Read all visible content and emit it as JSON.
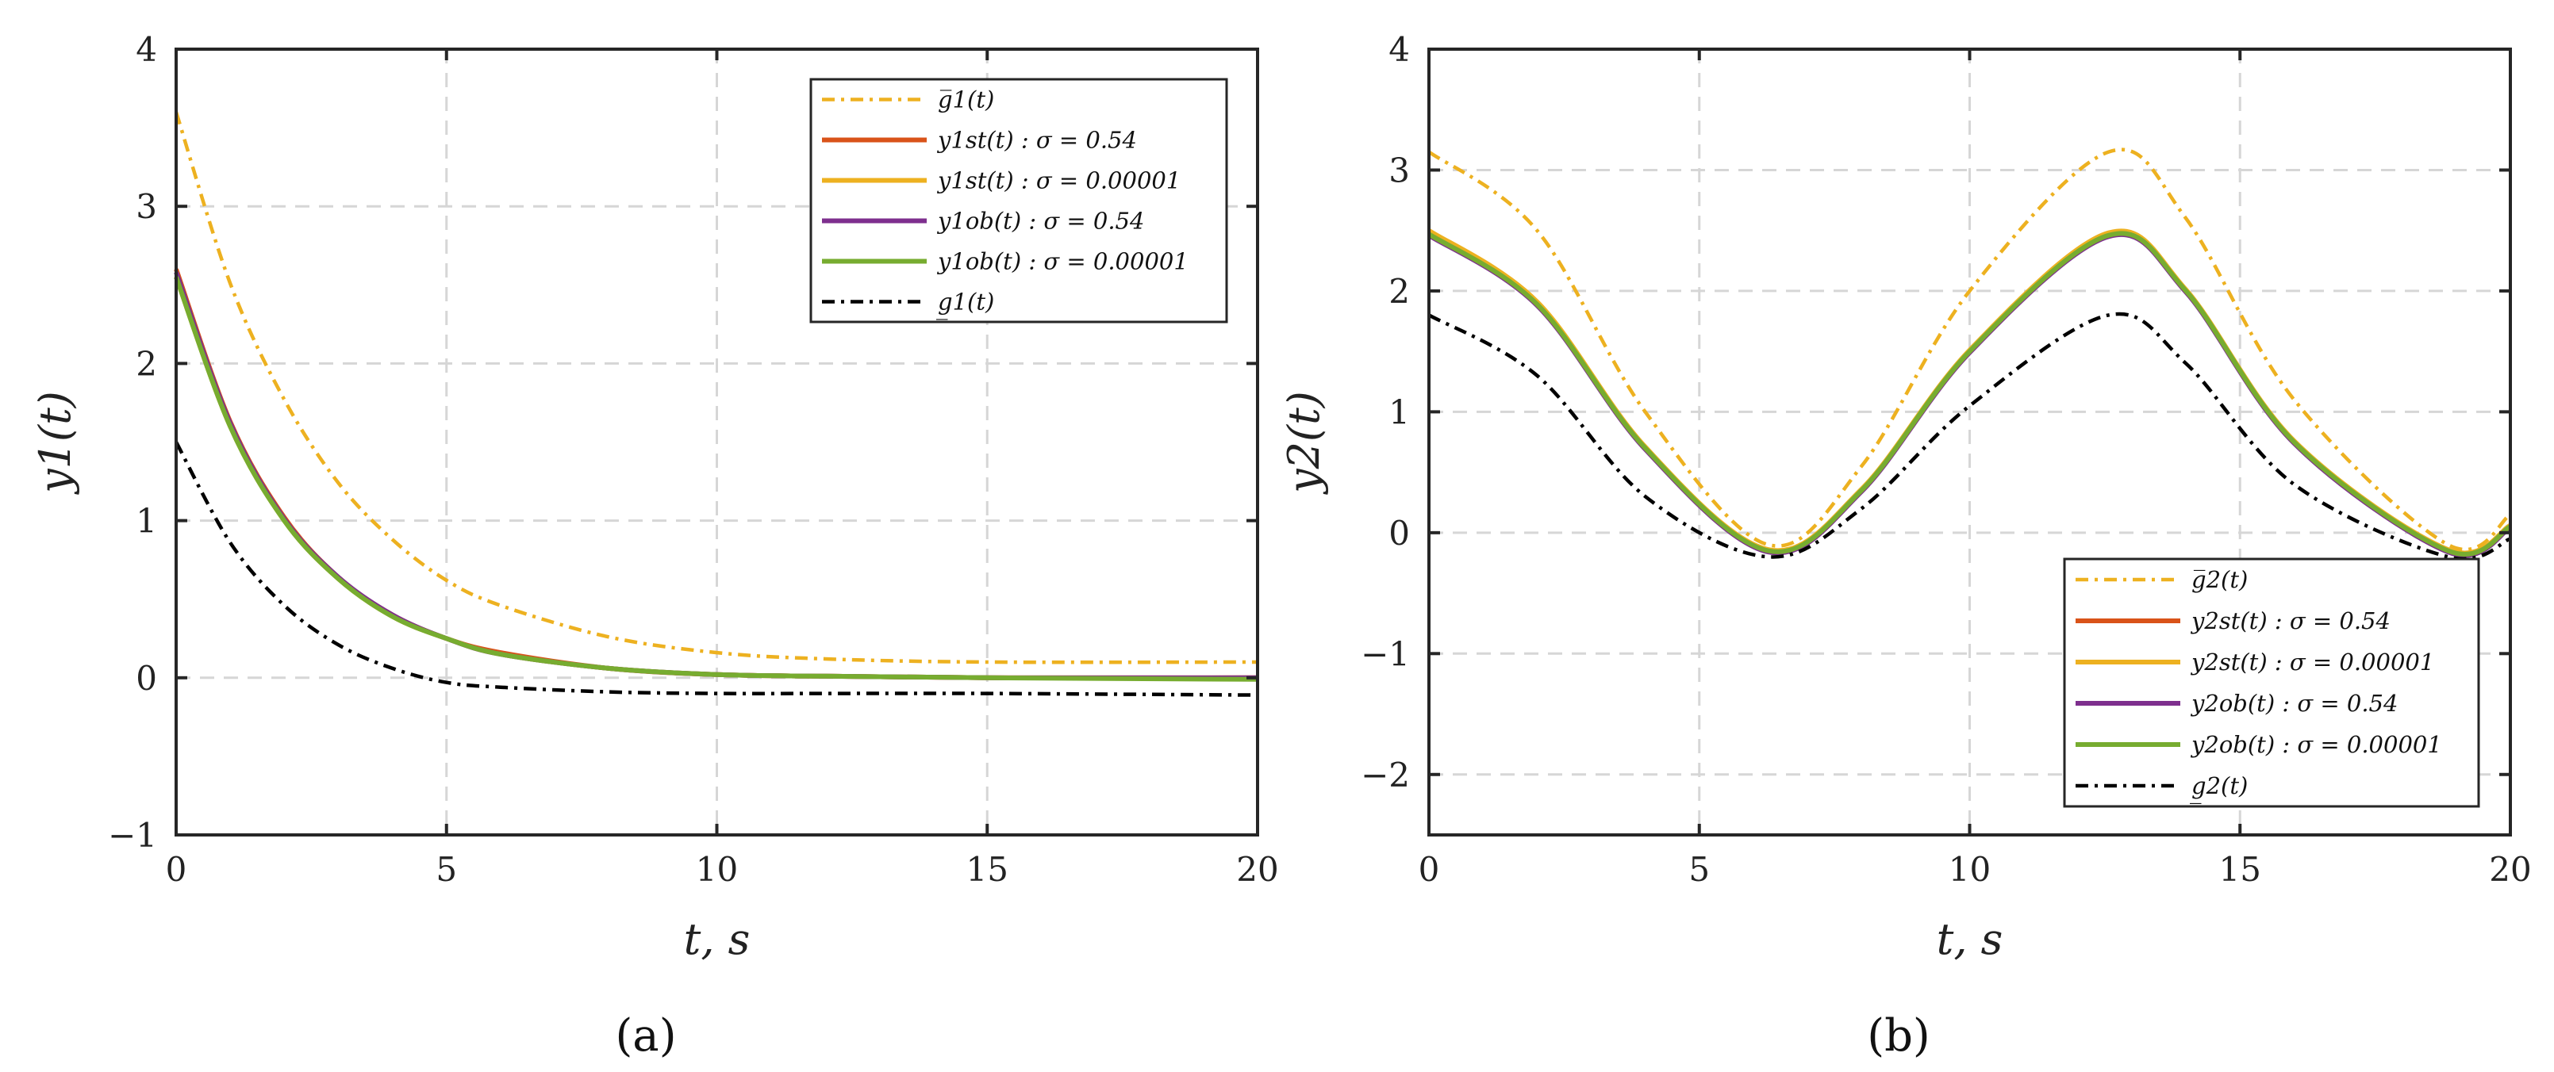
{
  "chart_data": [
    {
      "type": "line",
      "panel_label": "(a)",
      "xlabel": "t, s",
      "ylabel": "y1(t)",
      "xlim": [
        0,
        20
      ],
      "ylim": [
        -1,
        4
      ],
      "xticks": [
        0,
        5,
        10,
        15,
        20
      ],
      "yticks": [
        -1,
        0,
        1,
        2,
        3,
        4
      ],
      "xtick_labels": [
        "0",
        "5",
        "10",
        "15",
        "20"
      ],
      "ytick_labels": [
        "−1",
        "0",
        "1",
        "2",
        "3",
        "4"
      ],
      "grid": true,
      "legend_position": "top-right",
      "series": [
        {
          "name": "g̅1(t)",
          "color": "#EDB120",
          "dash": "dashdot",
          "x": [
            0,
            1,
            2,
            3,
            4,
            5,
            6,
            8,
            10,
            12,
            15,
            20
          ],
          "y": [
            3.6,
            2.51,
            1.77,
            1.24,
            0.88,
            0.62,
            0.46,
            0.26,
            0.16,
            0.12,
            0.1,
            0.1
          ]
        },
        {
          "name": "y1st(t) : σ = 0.54",
          "color": "#D95319",
          "dash": "solid",
          "x": [
            0,
            1,
            2,
            3,
            4,
            5,
            6,
            8,
            10,
            12,
            15,
            20
          ],
          "y": [
            2.6,
            1.63,
            1.02,
            0.64,
            0.4,
            0.25,
            0.16,
            0.06,
            0.02,
            0.01,
            0.0,
            0.0
          ]
        },
        {
          "name": "y1st(t) : σ = 0.00001",
          "color": "#EDB120",
          "dash": "solid",
          "x": [
            0,
            1,
            2,
            3,
            4,
            5,
            6,
            8,
            10,
            12,
            15,
            20
          ],
          "y": [
            2.55,
            1.6,
            1.0,
            0.63,
            0.39,
            0.25,
            0.15,
            0.06,
            0.02,
            0.01,
            0.0,
            0.0
          ]
        },
        {
          "name": "y1ob(t) : σ = 0.54",
          "color": "#7E2F8E",
          "dash": "solid",
          "x": [
            0,
            1,
            2,
            3,
            4,
            5,
            6,
            8,
            10,
            12,
            15,
            20
          ],
          "y": [
            2.58,
            1.62,
            1.01,
            0.64,
            0.4,
            0.25,
            0.15,
            0.06,
            0.02,
            0.01,
            0.0,
            0.0
          ]
        },
        {
          "name": "y1ob(t) : σ = 0.00001",
          "color": "#77AC30",
          "dash": "solid",
          "x": [
            0,
            1,
            2,
            3,
            4,
            5,
            6,
            8,
            10,
            12,
            15,
            20
          ],
          "y": [
            2.55,
            1.6,
            1.0,
            0.63,
            0.39,
            0.25,
            0.15,
            0.06,
            0.02,
            0.01,
            0.0,
            -0.01
          ]
        },
        {
          "name": "g̲1(t)",
          "color": "#000000",
          "dash": "dashdot",
          "x": [
            0,
            1,
            2,
            3,
            4,
            5,
            6,
            8,
            10,
            12,
            15,
            20
          ],
          "y": [
            1.5,
            0.86,
            0.46,
            0.21,
            0.06,
            -0.03,
            -0.06,
            -0.09,
            -0.1,
            -0.1,
            -0.1,
            -0.11
          ]
        }
      ]
    },
    {
      "type": "line",
      "panel_label": "(b)",
      "xlabel": "t, s",
      "ylabel": "y2(t)",
      "xlim": [
        0,
        20
      ],
      "ylim": [
        -2.5,
        4
      ],
      "xticks": [
        0,
        5,
        10,
        15,
        20
      ],
      "yticks": [
        -2,
        -1,
        0,
        1,
        2,
        3,
        4
      ],
      "xtick_labels": [
        "0",
        "5",
        "10",
        "15",
        "20"
      ],
      "ytick_labels": [
        "−2",
        "−1",
        "0",
        "1",
        "2",
        "3",
        "4"
      ],
      "grid": true,
      "legend_position": "bottom-right",
      "series": [
        {
          "name": "g̅2(t)",
          "color": "#EDB120",
          "dash": "dashdot",
          "x": [
            0,
            2,
            4,
            6.28,
            8,
            10,
            12.57,
            14,
            16,
            18.85,
            20
          ],
          "y": [
            3.15,
            2.5,
            1.0,
            -0.1,
            0.55,
            2.0,
            3.15,
            2.6,
            1.1,
            -0.1,
            0.15
          ]
        },
        {
          "name": "y2st(t) : σ = 0.54",
          "color": "#D95319",
          "dash": "solid",
          "x": [
            0,
            2,
            4,
            6.28,
            8,
            10,
            12.57,
            14,
            16,
            18.85,
            20
          ],
          "y": [
            2.48,
            1.9,
            0.7,
            -0.15,
            0.35,
            1.5,
            2.46,
            2.0,
            0.75,
            -0.15,
            0.05
          ]
        },
        {
          "name": "y2st(t) : σ = 0.00001",
          "color": "#EDB120",
          "dash": "solid",
          "x": [
            0,
            2,
            4,
            6.28,
            8,
            10,
            12.57,
            14,
            16,
            18.85,
            20
          ],
          "y": [
            2.5,
            1.91,
            0.71,
            -0.14,
            0.36,
            1.51,
            2.48,
            2.01,
            0.76,
            -0.14,
            0.06
          ]
        },
        {
          "name": "y2ob(t) : σ = 0.54",
          "color": "#7E2F8E",
          "dash": "solid",
          "x": [
            0,
            2,
            4,
            6.28,
            8,
            10,
            12.57,
            14,
            16,
            18.85,
            20
          ],
          "y": [
            2.46,
            1.88,
            0.69,
            -0.16,
            0.34,
            1.49,
            2.45,
            1.99,
            0.74,
            -0.16,
            0.04
          ]
        },
        {
          "name": "y2ob(t) : σ = 0.00001",
          "color": "#77AC30",
          "dash": "solid",
          "x": [
            0,
            2,
            4,
            6.28,
            8,
            10,
            12.57,
            14,
            16,
            18.85,
            20
          ],
          "y": [
            2.47,
            1.89,
            0.7,
            -0.15,
            0.35,
            1.5,
            2.46,
            2.0,
            0.75,
            -0.15,
            0.05
          ]
        },
        {
          "name": "g̲2(t)",
          "color": "#000000",
          "dash": "dashdot",
          "x": [
            0,
            2,
            4,
            6.28,
            8,
            10,
            12.57,
            14,
            16,
            18.85,
            20
          ],
          "y": [
            1.8,
            1.3,
            0.3,
            -0.2,
            0.2,
            1.05,
            1.8,
            1.4,
            0.4,
            -0.2,
            -0.05
          ]
        }
      ]
    }
  ]
}
